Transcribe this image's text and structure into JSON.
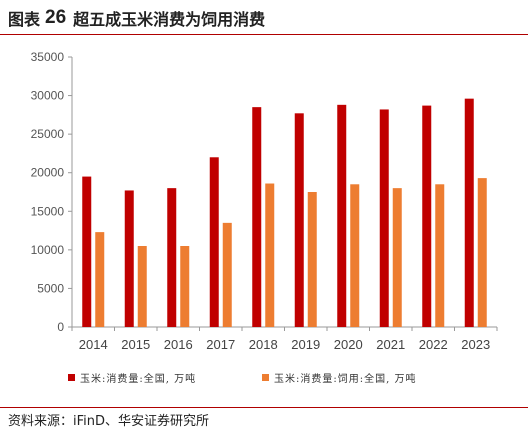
{
  "figure": {
    "label": "图表",
    "number": "26",
    "title": "超五成玉米消费为饲用消费"
  },
  "source": "资料来源：iFinD、华安证券研究所",
  "chart_data": {
    "type": "bar",
    "categories": [
      "2014",
      "2015",
      "2016",
      "2017",
      "2018",
      "2019",
      "2020",
      "2021",
      "2022",
      "2023"
    ],
    "series": [
      {
        "name": "玉米:消费量:全国, 万吨",
        "color": "#c00000",
        "values": [
          19500,
          17700,
          18000,
          22000,
          28500,
          27700,
          28800,
          28200,
          28700,
          29600
        ]
      },
      {
        "name": "玉米:消费量:饲用:全国, 万吨",
        "color": "#ed7d31",
        "values": [
          12300,
          10500,
          10500,
          13500,
          18600,
          17500,
          18500,
          18000,
          18500,
          19300
        ]
      }
    ],
    "ylim": [
      0,
      35000
    ],
    "yticks": [
      0,
      5000,
      10000,
      15000,
      20000,
      25000,
      30000,
      35000
    ],
    "grid": false,
    "legend_position": "bottom",
    "title": "",
    "xlabel": "",
    "ylabel": ""
  }
}
